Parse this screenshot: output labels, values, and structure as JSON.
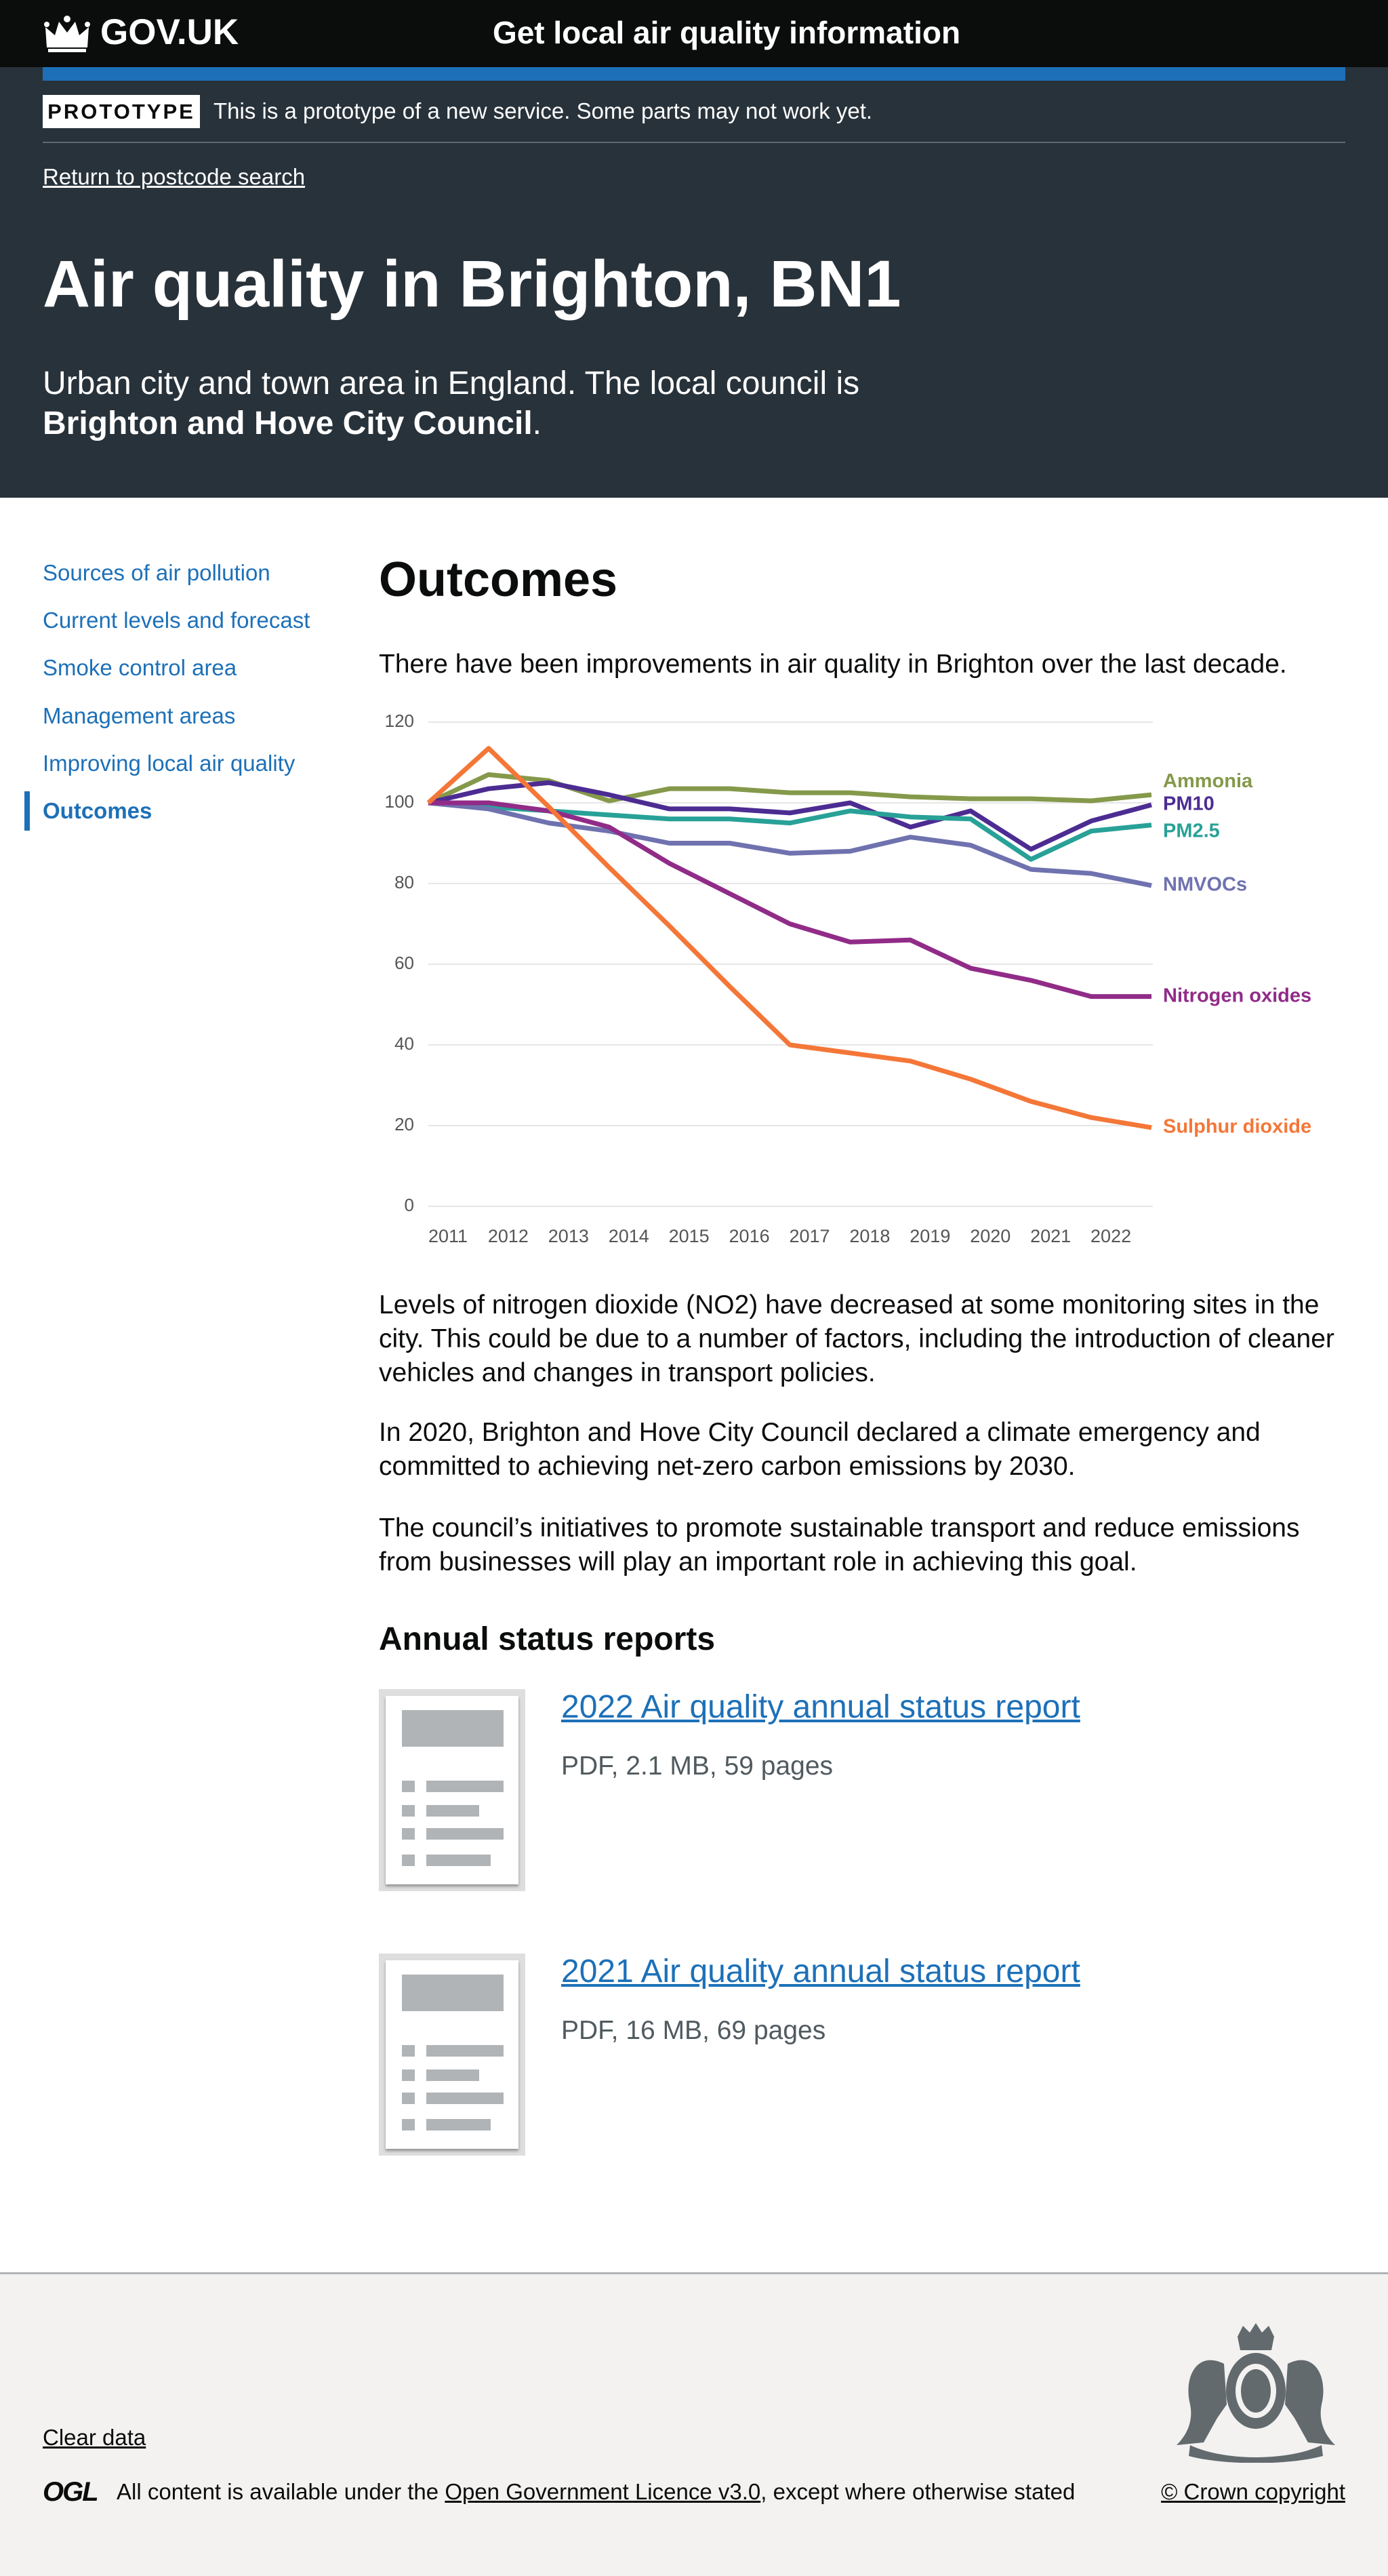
{
  "header": {
    "logo": "GOV.UK",
    "service": "Get local air quality information"
  },
  "banner": {
    "tag": "PROTOTYPE",
    "text": "This is a prototype of a new service. Some parts may not work yet."
  },
  "back_link": "Return to postcode search",
  "hero": {
    "title": "Air quality in Brighton, BN1",
    "description": "Urban city and town area in England. The local council is",
    "council": "Brighton and Hove City Council",
    "description_end": "."
  },
  "navigation": [
    "Sources of air pollution",
    "Current levels and forecast",
    "Smoke control area",
    "Management areas",
    "Improving local air quality",
    "Outcomes"
  ],
  "section": {
    "heading": "Outcomes",
    "intro": "There have been improvements in air quality in Brighton over the last decade."
  },
  "chart_data": {
    "type": "line",
    "categories": [
      "2011",
      "2012",
      "2013",
      "2014",
      "2015",
      "2016",
      "2017",
      "2018",
      "2019",
      "2020",
      "2021",
      "2022",
      null
    ],
    "series": [
      {
        "name": "Ammonia",
        "color": "#85994b",
        "values": [
          100,
          107,
          105.5,
          100.5,
          103.5,
          103.5,
          102.5,
          102.5,
          101.5,
          101,
          101,
          100.5,
          102
        ]
      },
      {
        "name": "PM10",
        "color": "#4c2c92",
        "values": [
          100,
          103.5,
          105,
          102,
          98.5,
          98.5,
          97.5,
          100,
          94,
          98,
          88.5,
          95.5,
          99.5
        ]
      },
      {
        "name": "PM2.5",
        "color": "#28a197",
        "values": [
          100,
          99,
          98,
          97,
          96,
          96,
          95,
          98,
          96.5,
          96,
          86,
          93,
          94.5
        ]
      },
      {
        "name": "NMVOCs",
        "color": "#6f72af",
        "values": [
          100,
          98.5,
          95,
          93,
          90,
          90,
          87.5,
          88,
          91.5,
          89.5,
          83.5,
          82.5,
          79.5
        ]
      },
      {
        "name": "Nitrogen oxides",
        "color": "#912b88",
        "values": [
          100,
          100,
          98,
          94,
          85,
          77.5,
          70,
          65.5,
          66,
          59,
          56,
          52,
          52
        ]
      },
      {
        "name": "Sulphur dioxide",
        "color": "#f47738",
        "values": [
          100,
          113.5,
          99,
          84,
          69.5,
          54.5,
          40,
          38,
          36,
          31.5,
          26,
          22,
          19.5
        ]
      }
    ],
    "ylim": [
      0,
      120
    ],
    "yticks": [
      0,
      20,
      40,
      60,
      80,
      100,
      120
    ],
    "grid": true
  },
  "body_paragraphs": [
    "Levels of nitrogen dioxide (NO2) have decreased at some monitoring sites in the city. This could be due to a number of factors, including the introduction of cleaner vehicles and changes in transport policies.",
    "In 2020, Brighton and Hove City Council declared a climate emergency and committed to achieving net-zero carbon emissions by 2030.",
    "The council’s initiatives to promote sustainable transport and reduce emissions from businesses will play an important role in achieving this goal."
  ],
  "reports": {
    "heading": "Annual status reports",
    "items": [
      {
        "title": "2022 Air quality annual status report",
        "meta": "PDF, 2.1 MB, 59 pages"
      },
      {
        "title": "2021 Air quality annual status report",
        "meta": "PDF, 16 MB, 69 pages"
      }
    ]
  },
  "footer": {
    "clear_data": "Clear data",
    "ogl_logo": "OGL",
    "ogl_prefix": "All content is available under the ",
    "licence": "Open Government Licence v3.0",
    "ogl_suffix": ", except where otherwise stated",
    "copyright": "© Crown copyright"
  }
}
